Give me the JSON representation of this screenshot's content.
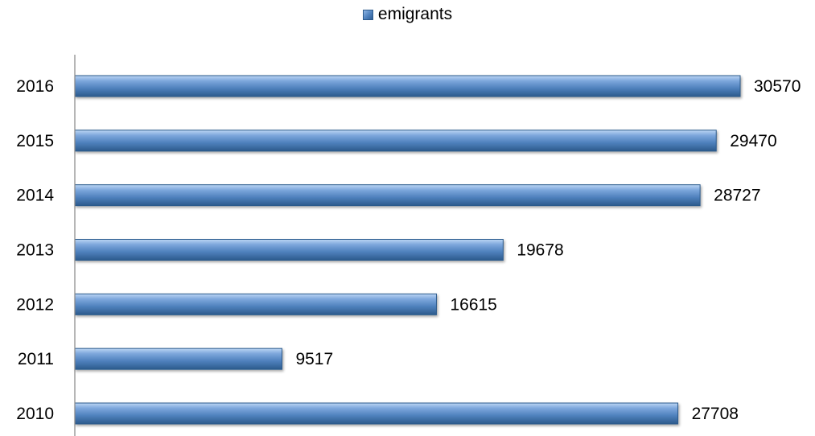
{
  "chart_data": {
    "type": "bar",
    "orientation": "horizontal",
    "categories": [
      "2010",
      "2011",
      "2012",
      "2013",
      "2014",
      "2015",
      "2016"
    ],
    "series": [
      {
        "name": "emigrants",
        "values": [
          27708,
          9517,
          16615,
          19678,
          28727,
          29470,
          30570
        ]
      }
    ],
    "data_labels": [
      "27708",
      "9517",
      "16615",
      "19678",
      "28727",
      "29470",
      "30570"
    ],
    "xlim": [
      0,
      30570
    ],
    "legend_position": "top-center",
    "grid": false,
    "colors": {
      "bar_light": "#9cc0ea",
      "bar_mid": "#4f81bd",
      "bar_dark": "#2c5a8c",
      "axis": "#868686"
    }
  }
}
